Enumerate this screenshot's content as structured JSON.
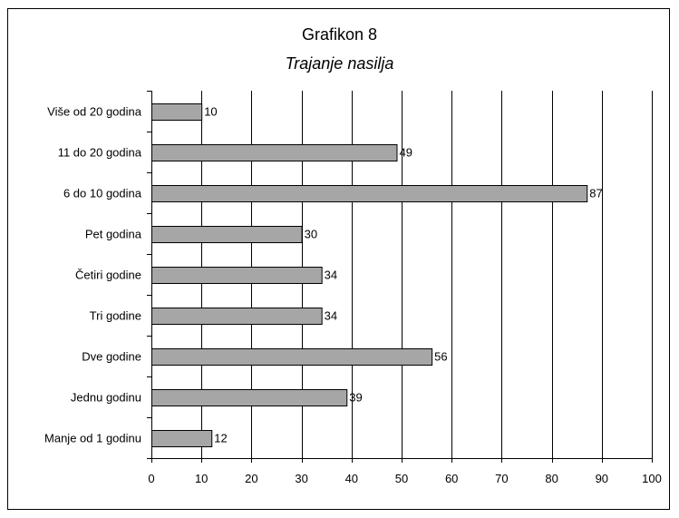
{
  "chart_data": {
    "type": "bar",
    "orientation": "horizontal",
    "title": "Grafikon 8",
    "subtitle": "Trajanje nasilja",
    "categories": [
      "Više od 20 godina",
      "11 do 20 godina",
      "6 do 10 godina",
      "Pet godina",
      "Četiri godine",
      "Tri godine",
      "Dve godine",
      "Jednu godinu",
      "Manje od 1 godinu"
    ],
    "values": [
      10,
      49,
      87,
      30,
      34,
      34,
      56,
      39,
      12
    ],
    "xlim": [
      0,
      100
    ],
    "xticks": [
      0,
      10,
      20,
      30,
      40,
      50,
      60,
      70,
      80,
      90,
      100
    ],
    "grid": "vertical",
    "legend": "none",
    "colors": {
      "bar_fill": "#a6a6a6",
      "bar_stroke": "#000000",
      "grid": "#000000"
    }
  }
}
